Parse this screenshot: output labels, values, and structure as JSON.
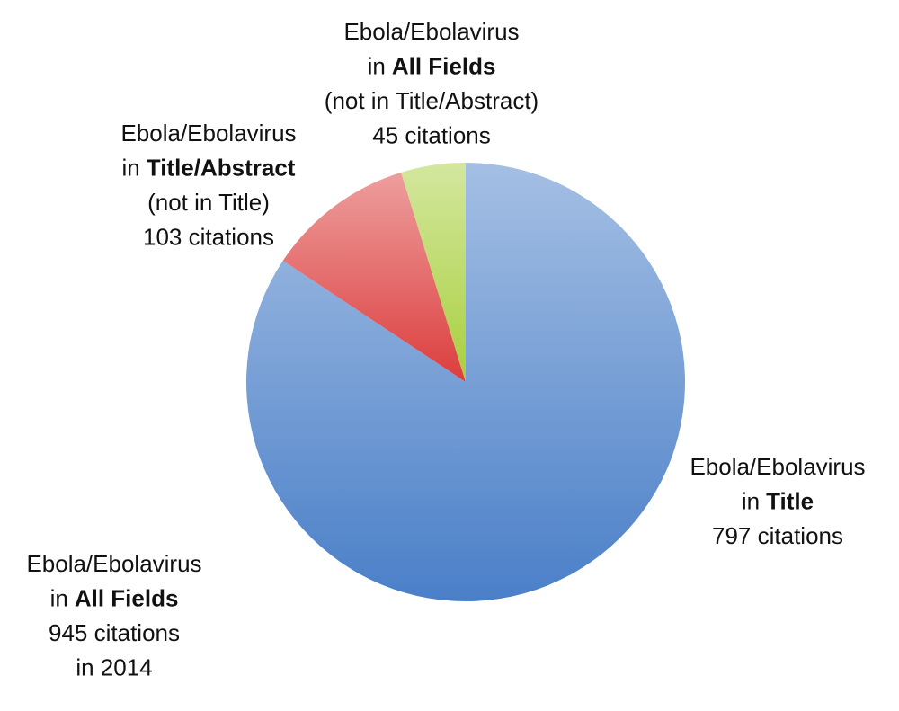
{
  "chart_data": {
    "type": "pie",
    "categories": [
      {
        "line1": "Ebola/Ebolavirus",
        "prefix": "in",
        "field": "Title"
      },
      {
        "line1": "Ebola/Ebolavirus",
        "prefix": "in",
        "field": "Title/Abstract",
        "note": "(not in Title)"
      },
      {
        "line1": "Ebola/Ebolavirus",
        "prefix": "in",
        "field": "All Fields",
        "note": "(not in Title/Abstract)"
      }
    ],
    "values": [
      797,
      103,
      45
    ],
    "value_labels": [
      "797 citations",
      "103 citations",
      "45 citations"
    ],
    "colors": [
      "#4a7fc8",
      "#dc3d3d",
      "#a8cf3e"
    ],
    "total": 945,
    "total_label": {
      "line1": "Ebola/Ebolavirus",
      "prefix": "in",
      "field": "All Fields",
      "count": "945 citations",
      "period": "in 2014"
    }
  }
}
